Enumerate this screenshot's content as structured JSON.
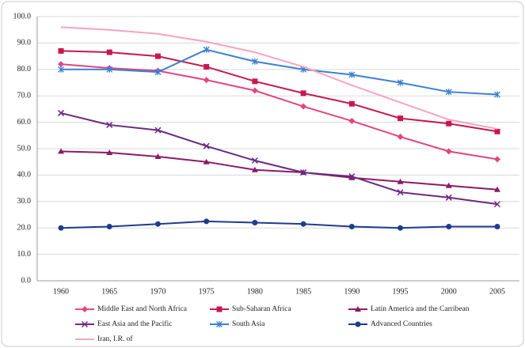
{
  "chart_data": {
    "type": "line",
    "categories": [
      "1960",
      "1965",
      "1970",
      "1975",
      "1980",
      "1985",
      "1990",
      "1995",
      "2000",
      "2005"
    ],
    "ylim": [
      0,
      100
    ],
    "yticks": [
      {
        "value": 0,
        "label": "0.0"
      },
      {
        "value": 10,
        "label": "10.0"
      },
      {
        "value": 20,
        "label": "20.0"
      },
      {
        "value": 30,
        "label": "30.0"
      },
      {
        "value": 40,
        "label": "40.0"
      },
      {
        "value": 50,
        "label": "50.0"
      },
      {
        "value": 60,
        "label": "60.0"
      },
      {
        "value": 70,
        "label": "70.0"
      },
      {
        "value": 80,
        "label": "80.0"
      },
      {
        "value": 90,
        "label": "90.0"
      },
      {
        "value": 100,
        "label": "100.0"
      }
    ],
    "grid": true,
    "legend": "bottom",
    "series": [
      {
        "name": "Middle East and North Africa",
        "color": "#e2457f",
        "marker": "diamond",
        "values": [
          82,
          80.5,
          79.5,
          76,
          72,
          66,
          60.5,
          54.5,
          49,
          46
        ]
      },
      {
        "name": "Sub-Saharan Africa",
        "color": "#c8174f",
        "marker": "square",
        "values": [
          87,
          86.5,
          85,
          81,
          75.5,
          71,
          67,
          61.5,
          59.5,
          56.5
        ]
      },
      {
        "name": "Latin America and the Carribean",
        "color": "#8b1a68",
        "marker": "triangle",
        "values": [
          49,
          48.5,
          47,
          45,
          42,
          41,
          39,
          37.5,
          36,
          34.5
        ]
      },
      {
        "name": "East Asia and the Pacific",
        "color": "#6b2a80",
        "marker": "x",
        "values": [
          63.5,
          59,
          57,
          51,
          45.5,
          41,
          39.5,
          33.5,
          31.5,
          29
        ]
      },
      {
        "name": "South Asia",
        "color": "#3a80d2",
        "marker": "star",
        "values": [
          80,
          80,
          79,
          87.5,
          83,
          80,
          78,
          75,
          71.5,
          70.5
        ]
      },
      {
        "name": "Advanced Countries",
        "color": "#1f3c8c",
        "marker": "circle",
        "values": [
          20,
          20.5,
          21.5,
          22.5,
          22,
          21.5,
          20.5,
          20,
          20.5,
          20.5
        ]
      },
      {
        "name": "Iran, I.R. of",
        "color": "#f5a3c3",
        "marker": "none",
        "values": [
          96,
          95,
          93.5,
          90.5,
          86.5,
          81,
          74,
          67.5,
          61,
          57.5
        ]
      }
    ]
  }
}
